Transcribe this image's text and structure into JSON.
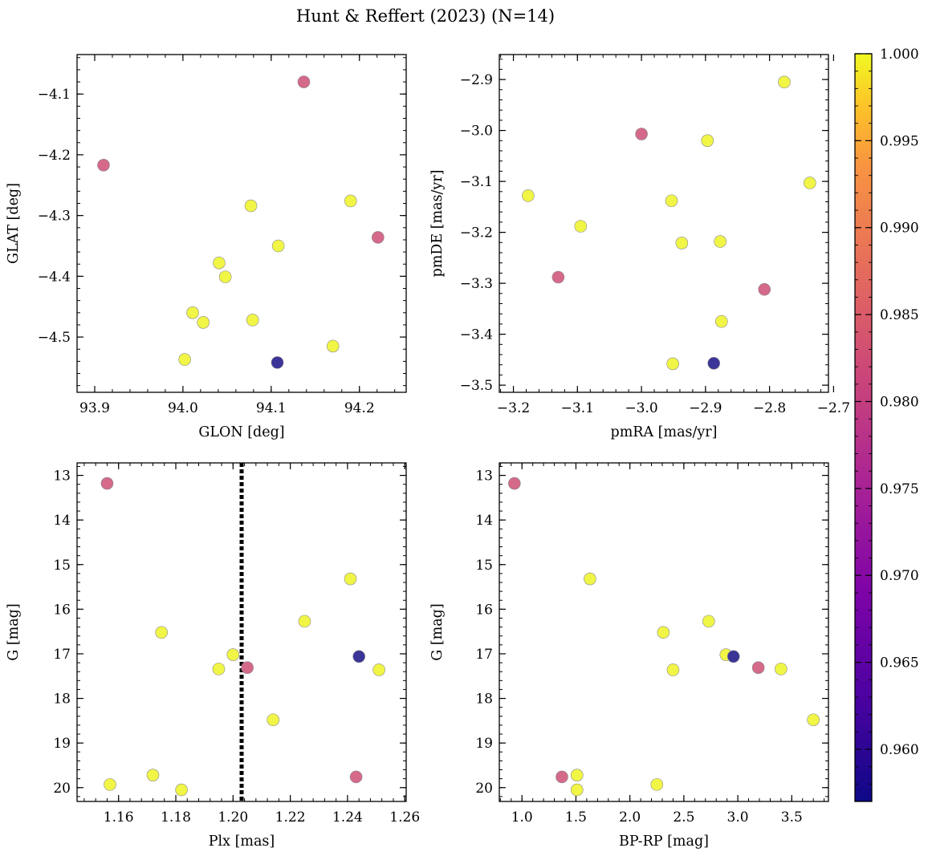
{
  "chart_data": {
    "title": "Hunt & Reffert (2023) (N=14)",
    "colormap": "plasma",
    "colorbar": {
      "vmin": 0.957,
      "vmax": 1.0,
      "ticks": [
        "0.960",
        "0.965",
        "0.970",
        "0.975",
        "0.980",
        "0.985",
        "0.990",
        "0.995",
        "1.000"
      ],
      "tick_values": [
        0.96,
        0.965,
        0.97,
        0.975,
        0.98,
        0.985,
        0.99,
        0.995,
        1.0
      ]
    },
    "stars": [
      {
        "glon": 94.137,
        "glat": -4.08,
        "pmra": -3.0,
        "pmde": -3.007,
        "plx": 1.156,
        "g": 13.18,
        "bprp": 0.93,
        "prob": 0.98
      },
      {
        "glon": 93.91,
        "glat": -4.217,
        "pmra": -3.13,
        "pmde": -3.288,
        "plx": 1.243,
        "g": 19.76,
        "bprp": 1.37,
        "prob": 0.98
      },
      {
        "glon": 94.221,
        "glat": -4.336,
        "pmra": -2.808,
        "pmde": -3.312,
        "plx": 1.205,
        "g": 17.31,
        "bprp": 3.19,
        "prob": 0.98
      },
      {
        "glon": 94.107,
        "glat": -4.542,
        "pmra": -2.887,
        "pmde": -3.457,
        "plx": 1.244,
        "g": 17.06,
        "bprp": 2.96,
        "prob": 0.957
      },
      {
        "glon": 94.19,
        "glat": -4.276,
        "pmra": -2.777,
        "pmde": -2.905,
        "plx": 1.241,
        "g": 15.32,
        "bprp": 1.63,
        "prob": 1.0
      },
      {
        "glon": 94.077,
        "glat": -4.284,
        "pmra": -2.897,
        "pmde": -3.02,
        "plx": 1.225,
        "g": 16.27,
        "bprp": 2.73,
        "prob": 1.0
      },
      {
        "glon": 94.108,
        "glat": -4.35,
        "pmra": -2.737,
        "pmde": -3.103,
        "plx": 1.175,
        "g": 16.52,
        "bprp": 2.31,
        "prob": 1.0
      },
      {
        "glon": 94.041,
        "glat": -4.378,
        "pmra": -2.953,
        "pmde": -3.138,
        "plx": 1.2,
        "g": 17.02,
        "bprp": 2.89,
        "prob": 1.0
      },
      {
        "glon": 94.048,
        "glat": -4.401,
        "pmra": -3.177,
        "pmde": -3.128,
        "plx": 1.195,
        "g": 17.34,
        "bprp": 3.4,
        "prob": 1.0
      },
      {
        "glon": 94.011,
        "glat": -4.46,
        "pmra": -3.095,
        "pmde": -3.188,
        "plx": 1.251,
        "g": 17.36,
        "bprp": 2.4,
        "prob": 1.0
      },
      {
        "glon": 94.023,
        "glat": -4.476,
        "pmra": -2.937,
        "pmde": -3.221,
        "plx": 1.214,
        "g": 18.48,
        "bprp": 3.7,
        "prob": 1.0
      },
      {
        "glon": 94.079,
        "glat": -4.472,
        "pmra": -2.877,
        "pmde": -3.218,
        "plx": 1.172,
        "g": 19.72,
        "bprp": 1.51,
        "prob": 1.0
      },
      {
        "glon": 94.17,
        "glat": -4.515,
        "pmra": -2.875,
        "pmde": -3.375,
        "plx": 1.157,
        "g": 19.93,
        "bprp": 2.25,
        "prob": 1.0
      },
      {
        "glon": 94.002,
        "glat": -4.537,
        "pmra": -2.951,
        "pmde": -3.458,
        "plx": 1.182,
        "g": 20.05,
        "bprp": 1.51,
        "prob": 1.0
      }
    ],
    "panels": [
      {
        "id": "glon-glat",
        "type": "scatter",
        "x_key": "glon",
        "y_key": "glat",
        "xlabel": "GLON [deg]",
        "ylabel": "GLAT [deg]",
        "xlim": [
          93.88,
          94.253
        ],
        "ylim": [
          -4.591,
          -4.035
        ],
        "y_inverted": false,
        "xticks": [
          93.9,
          94.0,
          94.1,
          94.2
        ],
        "xtick_labels": [
          "93.9",
          "94.0",
          "94.1",
          "94.2"
        ],
        "x_minor_step": 0.02,
        "yticks": [
          -4.5,
          -4.4,
          -4.3,
          -4.2,
          -4.1
        ],
        "ytick_labels": [
          "−4.5",
          "−4.4",
          "−4.3",
          "−4.2",
          "−4.1"
        ],
        "y_minor_step": 0.02
      },
      {
        "id": "pmra-pmde",
        "type": "scatter",
        "x_key": "pmra",
        "y_key": "pmde",
        "xlabel": "pmRA [mas/yr]",
        "ylabel": "pmDE [mas/yr]",
        "xlim": [
          -3.222,
          -2.708
        ],
        "ylim": [
          -3.514,
          -2.851
        ],
        "y_inverted": false,
        "xticks": [
          -3.2,
          -3.1,
          -3.0,
          -2.9,
          -2.8,
          -2.7
        ],
        "xtick_labels": [
          "−3.2",
          "−3.1",
          "−3.0",
          "−2.9",
          "−2.8",
          "−2.7"
        ],
        "x_minor_step": 0.02,
        "yticks": [
          -3.5,
          -3.4,
          -3.3,
          -3.2,
          -3.1,
          -3.0,
          -2.9
        ],
        "ytick_labels": [
          "−3.5",
          "−3.4",
          "−3.3",
          "−3.2",
          "−3.1",
          "−3.0",
          "−2.9"
        ],
        "y_minor_step": 0.02
      },
      {
        "id": "plx-g",
        "type": "scatter",
        "x_key": "plx",
        "y_key": "g",
        "xlabel": "Plx [mas]",
        "ylabel": "G [mag]",
        "xlim": [
          1.1455,
          1.2605
        ],
        "ylim": [
          12.72,
          20.31
        ],
        "y_inverted": true,
        "vline": 1.203,
        "xticks": [
          1.16,
          1.18,
          1.2,
          1.22,
          1.24,
          1.26
        ],
        "xtick_labels": [
          "1.16",
          "1.18",
          "1.20",
          "1.22",
          "1.24",
          "1.26"
        ],
        "x_minor_step": 0.004,
        "yticks": [
          13,
          14,
          15,
          16,
          17,
          18,
          19,
          20
        ],
        "ytick_labels": [
          "13",
          "14",
          "15",
          "16",
          "17",
          "18",
          "19",
          "20"
        ],
        "y_minor_step": 0.2
      },
      {
        "id": "bprp-g",
        "type": "scatter",
        "x_key": "bprp",
        "y_key": "g",
        "xlabel": "BP-RP [mag]",
        "ylabel": "G [mag]",
        "xlim": [
          0.79,
          3.84
        ],
        "ylim": [
          12.72,
          20.31
        ],
        "y_inverted": true,
        "xticks": [
          1.0,
          1.5,
          2.0,
          2.5,
          3.0,
          3.5
        ],
        "xtick_labels": [
          "1.0",
          "1.5",
          "2.0",
          "2.5",
          "3.0",
          "3.5"
        ],
        "x_minor_step": 0.1,
        "yticks": [
          13,
          14,
          15,
          16,
          17,
          18,
          19,
          20
        ],
        "ytick_labels": [
          "13",
          "14",
          "15",
          "16",
          "17",
          "18",
          "19",
          "20"
        ],
        "y_minor_step": 0.2
      }
    ]
  }
}
